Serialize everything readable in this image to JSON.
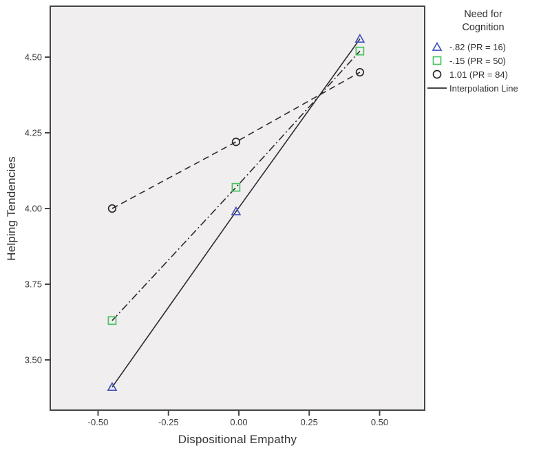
{
  "chart_data": {
    "type": "line",
    "title": "",
    "xlabel": "Dispositional Empathy",
    "ylabel": "Helping Tendencies",
    "xlim": [
      -0.67,
      0.66
    ],
    "ylim": [
      3.33,
      4.67
    ],
    "grid": false,
    "plot_bg": "#f0eeef",
    "frame_color": "#454545",
    "line_color": "#2b2b2b",
    "text_color": "#3c3c3c",
    "xticks": {
      "values": [
        -0.5,
        -0.25,
        0.0,
        0.25,
        0.5
      ],
      "labels": [
        "-0.50",
        "-0.25",
        "0.00",
        "0.25",
        "0.50"
      ]
    },
    "yticks": {
      "values": [
        3.5,
        3.75,
        4.0,
        4.25,
        4.5
      ],
      "labels": [
        "3.50",
        "3.75",
        "4.00",
        "4.25",
        "4.50"
      ]
    },
    "x": [
      -0.45,
      -0.01,
      0.43
    ],
    "series": [
      {
        "name": "-.82 (PR = 16)",
        "marker": "triangle",
        "marker_color": "#4355bd",
        "line_style": "solid",
        "values": [
          3.41,
          3.99,
          4.56
        ]
      },
      {
        "name": "-.15 (PR = 50)",
        "marker": "square",
        "marker_color": "#47c35f",
        "line_style": "dash-dot",
        "values": [
          3.63,
          4.07,
          4.52
        ]
      },
      {
        "name": "1.01 (PR = 84)",
        "marker": "circle",
        "marker_color": "#2b2b2b",
        "line_style": "dashed",
        "values": [
          4.0,
          4.22,
          4.45
        ]
      }
    ],
    "legend": {
      "position": "right",
      "title": "Need for Cognition",
      "entries": [
        {
          "label": "-.82 (PR = 16)",
          "marker": "triangle",
          "color": "#4355bd"
        },
        {
          "label": "-.15 (PR = 50)",
          "marker": "square",
          "color": "#47c35f"
        },
        {
          "label": "1.01 (PR = 84)",
          "marker": "circle",
          "color": "#2b2b2b"
        },
        {
          "label": "Interpolation Line",
          "marker": "line",
          "color": "#2b2b2b"
        }
      ]
    }
  }
}
